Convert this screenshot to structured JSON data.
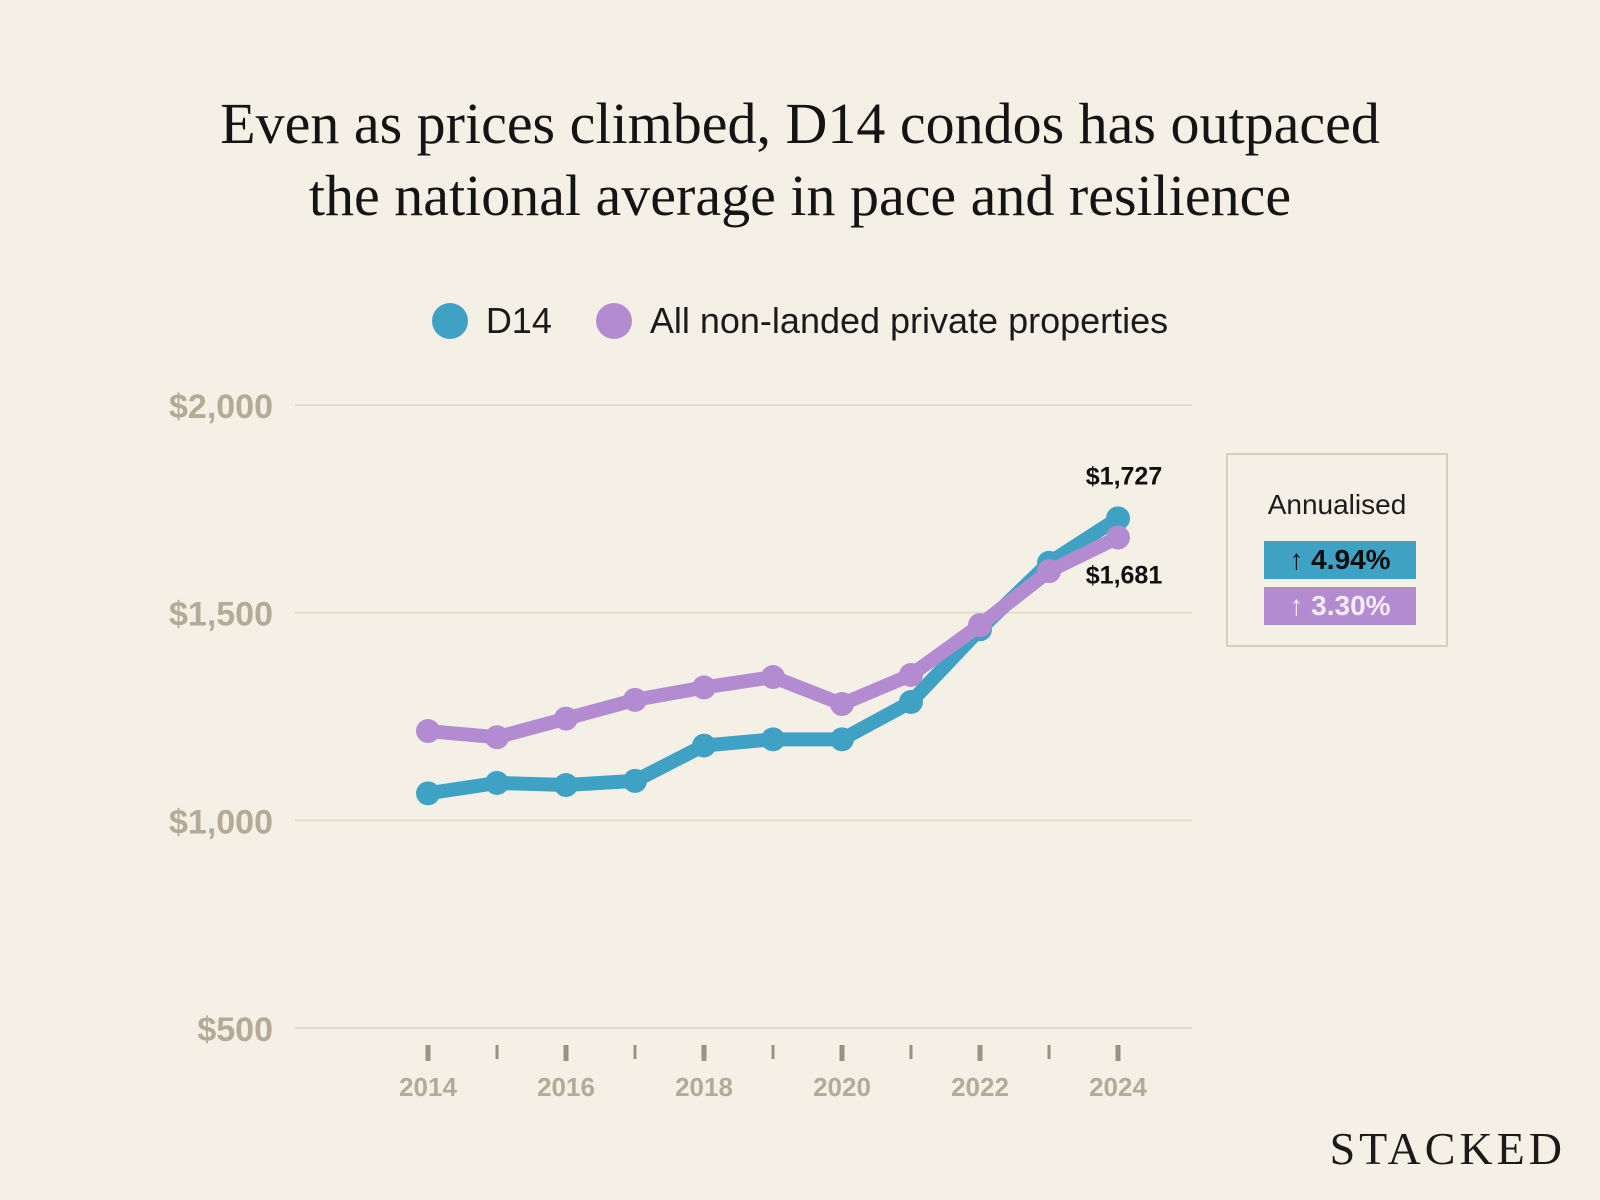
{
  "title": {
    "line1": "Even as prices climbed, D14 condos has outpaced",
    "line2": "the national average in pace and resilience"
  },
  "legend": [
    {
      "label": "D14",
      "color": "#3fa1c4"
    },
    {
      "label": "All non-landed private properties",
      "color": "#b38bd1"
    }
  ],
  "annualised": {
    "title": "Annualised",
    "d14": "↑ 4.94%",
    "all": "↑ 3.30%"
  },
  "brand": "STACKED",
  "chart_data": {
    "type": "line",
    "title": "Even as prices climbed, D14 condos has outpaced the national average in pace and resilience",
    "xlabel": "",
    "ylabel": "",
    "x": [
      2014,
      2015,
      2016,
      2017,
      2018,
      2019,
      2020,
      2021,
      2022,
      2023,
      2024
    ],
    "x_tick_labels": [
      "2014",
      "2016",
      "2018",
      "2020",
      "2022",
      "2024"
    ],
    "y_ticks": [
      500,
      1000,
      1500,
      2000
    ],
    "y_tick_labels": [
      "$500",
      "$1,000",
      "$1,500",
      "$2,000"
    ],
    "ylim": [
      500,
      2000
    ],
    "grid": true,
    "series": [
      {
        "name": "D14",
        "color": "#3fa1c4",
        "values": [
          1065,
          1090,
          1085,
          1095,
          1180,
          1195,
          1195,
          1285,
          1460,
          1620,
          1727
        ],
        "end_label": "$1,727"
      },
      {
        "name": "All non-landed private properties",
        "color": "#b38bd1",
        "values": [
          1215,
          1200,
          1245,
          1290,
          1320,
          1345,
          1280,
          1350,
          1470,
          1600,
          1681
        ],
        "end_label": "$1,681"
      }
    ]
  }
}
